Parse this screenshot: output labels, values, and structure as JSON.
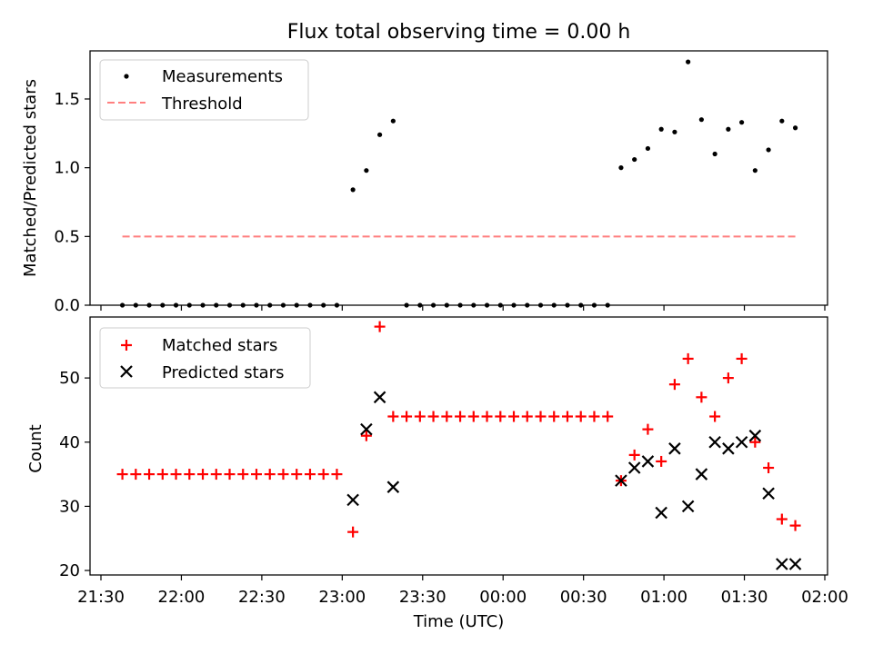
{
  "title": "Flux total observing time = 0.00 h",
  "chart_data": [
    {
      "type": "scatter",
      "panel": "top",
      "title": "Flux total observing time = 0.00 h",
      "xlabel": "",
      "ylabel": "Matched/Predicted stars",
      "ylim": [
        0,
        1.85
      ],
      "yticks": [
        0.0,
        0.5,
        1.0,
        1.5
      ],
      "ytick_labels": [
        "0.0",
        "0.5",
        "1.0",
        "1.5"
      ],
      "legend": {
        "placement": "top-left",
        "entries": [
          "Measurements",
          "Threshold"
        ]
      },
      "series": [
        {
          "name": "Measurements",
          "marker": "dot",
          "color": "#000000",
          "points": [
            [
              "21:38",
              0.0
            ],
            [
              "21:43",
              0.0
            ],
            [
              "21:48",
              0.0
            ],
            [
              "21:53",
              0.0
            ],
            [
              "21:58",
              0.0
            ],
            [
              "22:03",
              0.0
            ],
            [
              "22:08",
              0.0
            ],
            [
              "22:13",
              0.0
            ],
            [
              "22:18",
              0.0
            ],
            [
              "22:23",
              0.0
            ],
            [
              "22:28",
              0.0
            ],
            [
              "22:33",
              0.0
            ],
            [
              "22:38",
              0.0
            ],
            [
              "22:43",
              0.0
            ],
            [
              "22:48",
              0.0
            ],
            [
              "22:53",
              0.0
            ],
            [
              "22:58",
              0.0
            ],
            [
              "23:04",
              0.84
            ],
            [
              "23:09",
              0.98
            ],
            [
              "23:14",
              1.24
            ],
            [
              "23:19",
              1.34
            ],
            [
              "23:24",
              0.0
            ],
            [
              "23:29",
              0.0
            ],
            [
              "23:34",
              0.0
            ],
            [
              "23:39",
              0.0
            ],
            [
              "23:44",
              0.0
            ],
            [
              "23:49",
              0.0
            ],
            [
              "23:54",
              0.0
            ],
            [
              "23:59",
              0.0
            ],
            [
              "00:04",
              0.0
            ],
            [
              "00:09",
              0.0
            ],
            [
              "00:14",
              0.0
            ],
            [
              "00:19",
              0.0
            ],
            [
              "00:24",
              0.0
            ],
            [
              "00:29",
              0.0
            ],
            [
              "00:34",
              0.0
            ],
            [
              "00:39",
              0.0
            ],
            [
              "00:44",
              1.0
            ],
            [
              "00:49",
              1.06
            ],
            [
              "00:54",
              1.14
            ],
            [
              "00:59",
              1.28
            ],
            [
              "01:04",
              1.26
            ],
            [
              "01:09",
              1.77
            ],
            [
              "01:14",
              1.35
            ],
            [
              "01:19",
              1.1
            ],
            [
              "01:24",
              1.28
            ],
            [
              "01:29",
              1.33
            ],
            [
              "01:34",
              0.98
            ],
            [
              "01:39",
              1.13
            ],
            [
              "01:44",
              1.34
            ],
            [
              "01:49",
              1.29
            ]
          ]
        },
        {
          "name": "Threshold",
          "style": "dashed",
          "color": "#ff7f7f",
          "points": [
            [
              "21:38",
              0.5
            ],
            [
              "01:49",
              0.5
            ]
          ]
        }
      ]
    },
    {
      "type": "scatter",
      "panel": "bottom",
      "xlabel": "Time (UTC)",
      "ylabel": "Count",
      "ylim": [
        19.3,
        59.5
      ],
      "yticks": [
        20,
        30,
        40,
        50
      ],
      "ytick_labels": [
        "20",
        "30",
        "40",
        "50"
      ],
      "xticks": [
        "21:30",
        "22:00",
        "22:30",
        "23:00",
        "23:30",
        "00:00",
        "00:30",
        "01:00",
        "01:30",
        "02:00"
      ],
      "legend": {
        "placement": "top-left",
        "entries": [
          "Matched stars",
          "Predicted stars"
        ]
      },
      "series": [
        {
          "name": "Matched stars",
          "marker": "plus",
          "color": "#ff0000",
          "points": [
            [
              "21:38",
              35
            ],
            [
              "21:43",
              35
            ],
            [
              "21:48",
              35
            ],
            [
              "21:53",
              35
            ],
            [
              "21:58",
              35
            ],
            [
              "22:03",
              35
            ],
            [
              "22:08",
              35
            ],
            [
              "22:13",
              35
            ],
            [
              "22:18",
              35
            ],
            [
              "22:23",
              35
            ],
            [
              "22:28",
              35
            ],
            [
              "22:33",
              35
            ],
            [
              "22:38",
              35
            ],
            [
              "22:43",
              35
            ],
            [
              "22:48",
              35
            ],
            [
              "22:53",
              35
            ],
            [
              "22:58",
              35
            ],
            [
              "23:04",
              26
            ],
            [
              "23:09",
              41
            ],
            [
              "23:14",
              58
            ],
            [
              "23:19",
              44
            ],
            [
              "23:24",
              44
            ],
            [
              "23:29",
              44
            ],
            [
              "23:34",
              44
            ],
            [
              "23:39",
              44
            ],
            [
              "23:44",
              44
            ],
            [
              "23:49",
              44
            ],
            [
              "23:54",
              44
            ],
            [
              "23:59",
              44
            ],
            [
              "00:04",
              44
            ],
            [
              "00:09",
              44
            ],
            [
              "00:14",
              44
            ],
            [
              "00:19",
              44
            ],
            [
              "00:24",
              44
            ],
            [
              "00:29",
              44
            ],
            [
              "00:34",
              44
            ],
            [
              "00:39",
              44
            ],
            [
              "00:44",
              34
            ],
            [
              "00:49",
              38
            ],
            [
              "00:54",
              42
            ],
            [
              "00:59",
              37
            ],
            [
              "01:04",
              49
            ],
            [
              "01:09",
              53
            ],
            [
              "01:14",
              47
            ],
            [
              "01:19",
              44
            ],
            [
              "01:24",
              50
            ],
            [
              "01:29",
              53
            ],
            [
              "01:34",
              40
            ],
            [
              "01:39",
              36
            ],
            [
              "01:44",
              28
            ],
            [
              "01:49",
              27
            ]
          ]
        },
        {
          "name": "Predicted stars",
          "marker": "x",
          "color": "#000000",
          "points": [
            [
              "23:04",
              31
            ],
            [
              "23:09",
              42
            ],
            [
              "23:14",
              47
            ],
            [
              "23:19",
              33
            ],
            [
              "00:44",
              34
            ],
            [
              "00:49",
              36
            ],
            [
              "00:54",
              37
            ],
            [
              "00:59",
              29
            ],
            [
              "01:04",
              39
            ],
            [
              "01:09",
              30
            ],
            [
              "01:14",
              35
            ],
            [
              "01:19",
              40
            ],
            [
              "01:24",
              39
            ],
            [
              "01:29",
              40
            ],
            [
              "01:34",
              41
            ],
            [
              "01:39",
              32
            ],
            [
              "01:44",
              21
            ],
            [
              "01:49",
              21
            ]
          ]
        }
      ]
    }
  ]
}
